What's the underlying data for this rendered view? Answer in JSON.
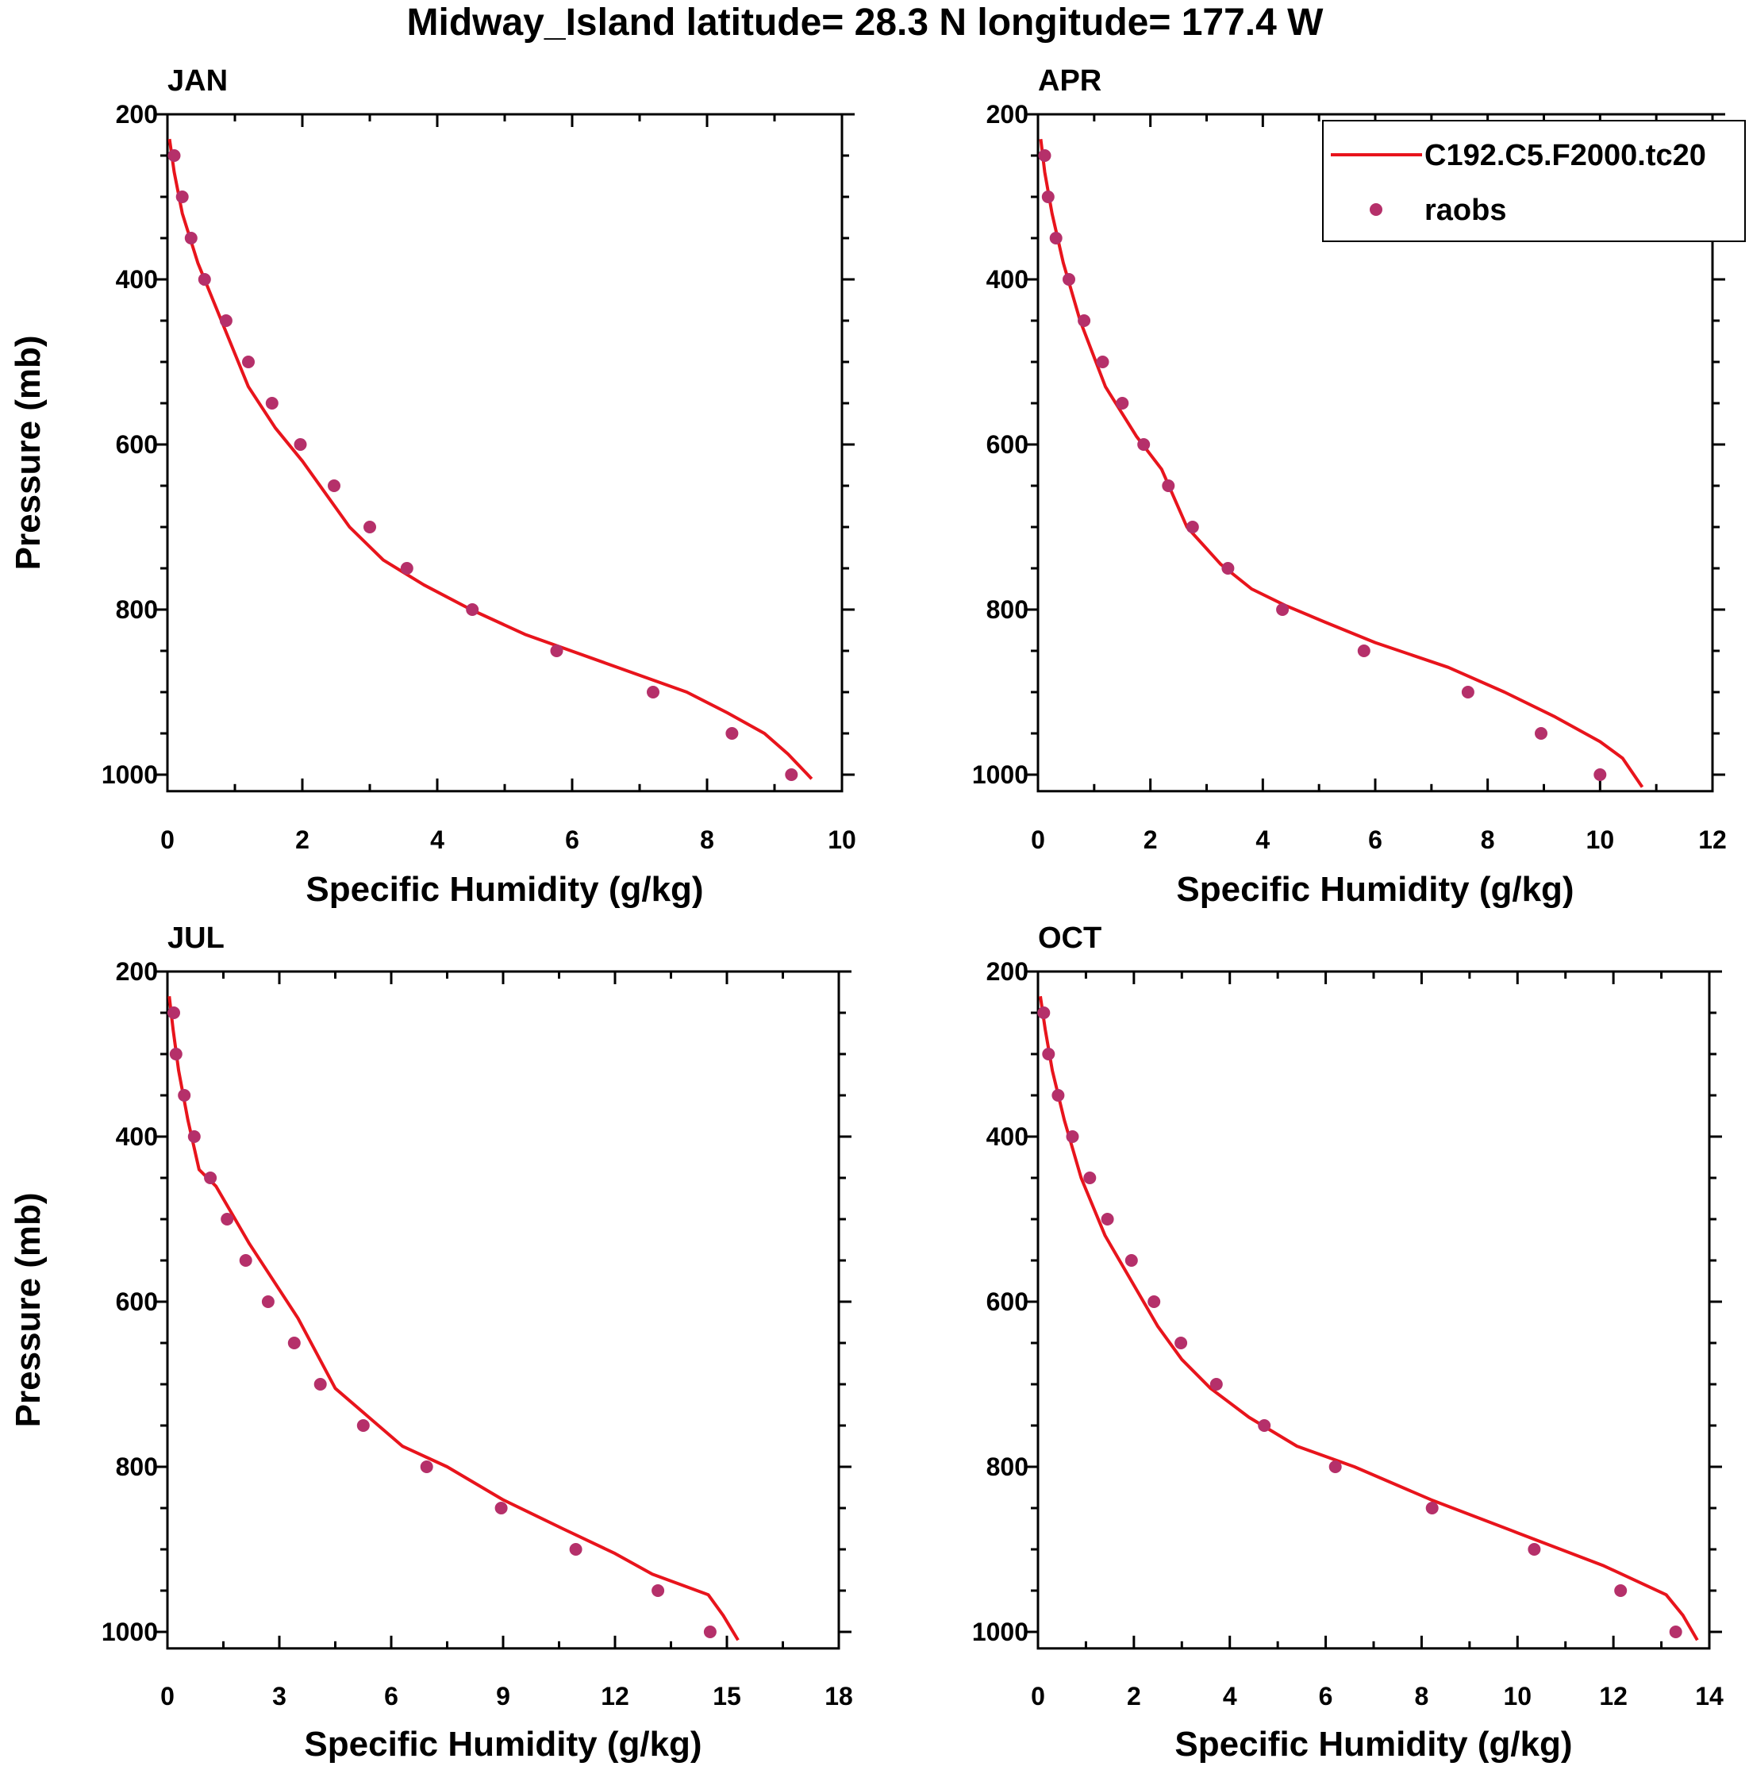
{
  "title": "Midway_Island  latitude= 28.3 N longitude= 177.4 W",
  "legend": {
    "placement": "top-right of APR panel",
    "entries": [
      {
        "label": "C192.C5.F2000.tc20",
        "kind": "line",
        "color": "#e8141c"
      },
      {
        "label": "raobs",
        "kind": "marker",
        "color": "#b5306a"
      }
    ]
  },
  "colors": {
    "model": "#e8141c",
    "obs": "#b5306a",
    "axis": "#000000"
  },
  "chart_data": [
    {
      "type": "line",
      "panel": "JAN",
      "title": "JAN",
      "xlabel": "Specific Humidity (g/kg)",
      "ylabel": "Pressure (mb)",
      "xlim": [
        0,
        10
      ],
      "xticks": [
        0,
        2,
        4,
        6,
        8,
        10
      ],
      "xtick_labels": [
        "0",
        "2",
        "4",
        "6",
        "8",
        "10"
      ],
      "ylim": [
        1020,
        200
      ],
      "yticks": [
        200,
        400,
        600,
        800,
        1000
      ],
      "ytick_labels": [
        "200",
        "400",
        "600",
        "800",
        "1000"
      ],
      "series": [
        {
          "name": "C192.C5.F2000.tc20",
          "kind": "line",
          "x": [
            0.03,
            0.1,
            0.22,
            0.45,
            0.8,
            1.2,
            1.6,
            2.0,
            2.7,
            3.2,
            3.8,
            4.5,
            5.3,
            6.5,
            7.7,
            8.3,
            8.85,
            9.2,
            9.55
          ],
          "y": [
            230,
            270,
            320,
            380,
            450,
            530,
            580,
            620,
            700,
            740,
            770,
            800,
            830,
            865,
            900,
            925,
            950,
            975,
            1005
          ]
        },
        {
          "name": "raobs",
          "kind": "scatter",
          "x": [
            0.1,
            0.22,
            0.35,
            0.55,
            0.87,
            1.2,
            1.55,
            1.97,
            2.47,
            3.0,
            3.55,
            4.52,
            5.77,
            7.2,
            8.37,
            9.25
          ],
          "y": [
            250,
            300,
            350,
            400,
            450,
            500,
            550,
            600,
            650,
            700,
            750,
            800,
            850,
            900,
            950,
            1000
          ]
        }
      ]
    },
    {
      "type": "line",
      "panel": "APR",
      "title": "APR",
      "xlabel": "Specific Humidity (g/kg)",
      "ylabel": "",
      "xlim": [
        0,
        12
      ],
      "xticks": [
        0,
        2,
        4,
        6,
        8,
        10,
        12
      ],
      "xtick_labels": [
        "0",
        "2",
        "4",
        "6",
        "8",
        "10",
        "12"
      ],
      "ylim": [
        1020,
        200
      ],
      "yticks": [
        200,
        400,
        600,
        800,
        1000
      ],
      "ytick_labels": [
        "200",
        "400",
        "600",
        "800",
        "1000"
      ],
      "series": [
        {
          "name": "C192.C5.F2000.tc20",
          "kind": "line",
          "x": [
            0.05,
            0.12,
            0.25,
            0.45,
            0.75,
            1.2,
            1.75,
            2.2,
            2.65,
            3.25,
            3.8,
            4.4,
            5.1,
            6.0,
            7.3,
            8.3,
            9.2,
            10.0,
            10.4,
            10.75
          ],
          "y": [
            230,
            270,
            320,
            380,
            450,
            530,
            590,
            630,
            700,
            745,
            775,
            795,
            815,
            840,
            870,
            900,
            930,
            960,
            980,
            1015
          ]
        },
        {
          "name": "raobs",
          "kind": "scatter",
          "x": [
            0.12,
            0.18,
            0.32,
            0.55,
            0.82,
            1.15,
            1.5,
            1.88,
            2.32,
            2.75,
            3.38,
            4.35,
            5.8,
            7.65,
            8.95,
            10.0
          ],
          "y": [
            250,
            300,
            350,
            400,
            450,
            500,
            550,
            600,
            650,
            700,
            750,
            800,
            850,
            900,
            950,
            1000
          ]
        }
      ]
    },
    {
      "type": "line",
      "panel": "JUL",
      "title": "JUL",
      "xlabel": "Specific Humidity (g/kg)",
      "ylabel": "Pressure (mb)",
      "xlim": [
        0,
        18
      ],
      "xticks": [
        0,
        3,
        6,
        9,
        12,
        15,
        18
      ],
      "xtick_labels": [
        "0",
        "3",
        "6",
        "9",
        "12",
        "15",
        "18"
      ],
      "ylim": [
        1020,
        200
      ],
      "yticks": [
        200,
        400,
        600,
        800,
        1000
      ],
      "ytick_labels": [
        "200",
        "400",
        "600",
        "800",
        "1000"
      ],
      "series": [
        {
          "name": "C192.C5.F2000.tc20",
          "kind": "line",
          "x": [
            0.05,
            0.15,
            0.3,
            0.55,
            0.85,
            1.3,
            2.2,
            3.5,
            4.5,
            5.4,
            6.3,
            7.5,
            9.0,
            10.6,
            12.0,
            13.0,
            14.5,
            14.9,
            15.1,
            15.3
          ],
          "y": [
            230,
            270,
            320,
            380,
            440,
            460,
            530,
            620,
            705,
            740,
            775,
            800,
            840,
            875,
            905,
            930,
            955,
            980,
            995,
            1010
          ]
        },
        {
          "name": "raobs",
          "kind": "scatter",
          "x": [
            0.17,
            0.23,
            0.45,
            0.72,
            1.15,
            1.6,
            2.1,
            2.7,
            3.4,
            4.1,
            5.25,
            6.95,
            8.95,
            10.95,
            13.15,
            14.55
          ],
          "y": [
            250,
            300,
            350,
            400,
            450,
            500,
            550,
            600,
            650,
            700,
            750,
            800,
            850,
            900,
            950,
            1000
          ]
        }
      ]
    },
    {
      "type": "line",
      "panel": "OCT",
      "title": "OCT",
      "xlabel": "Specific Humidity (g/kg)",
      "ylabel": "",
      "xlim": [
        0,
        14
      ],
      "xticks": [
        0,
        2,
        4,
        6,
        8,
        10,
        12,
        14
      ],
      "xtick_labels": [
        "0",
        "2",
        "4",
        "6",
        "8",
        "10",
        "12",
        "14"
      ],
      "ylim": [
        1020,
        200
      ],
      "yticks": [
        200,
        400,
        600,
        800,
        1000
      ],
      "ytick_labels": [
        "200",
        "400",
        "600",
        "800",
        "1000"
      ],
      "series": [
        {
          "name": "C192.C5.F2000.tc20",
          "kind": "line",
          "x": [
            0.05,
            0.15,
            0.3,
            0.55,
            0.9,
            1.4,
            2.0,
            2.5,
            3.0,
            3.6,
            4.4,
            5.4,
            6.6,
            8.2,
            10.0,
            11.8,
            13.1,
            13.45,
            13.75
          ],
          "y": [
            230,
            270,
            320,
            380,
            450,
            520,
            580,
            630,
            670,
            705,
            740,
            775,
            800,
            840,
            880,
            920,
            955,
            980,
            1010
          ]
        },
        {
          "name": "raobs",
          "kind": "scatter",
          "x": [
            0.12,
            0.22,
            0.42,
            0.72,
            1.08,
            1.45,
            1.95,
            2.42,
            2.98,
            3.72,
            4.72,
            6.2,
            8.22,
            10.35,
            12.15,
            13.3
          ],
          "y": [
            250,
            300,
            350,
            400,
            450,
            500,
            550,
            600,
            650,
            700,
            750,
            800,
            850,
            900,
            950,
            1000
          ]
        }
      ]
    }
  ]
}
